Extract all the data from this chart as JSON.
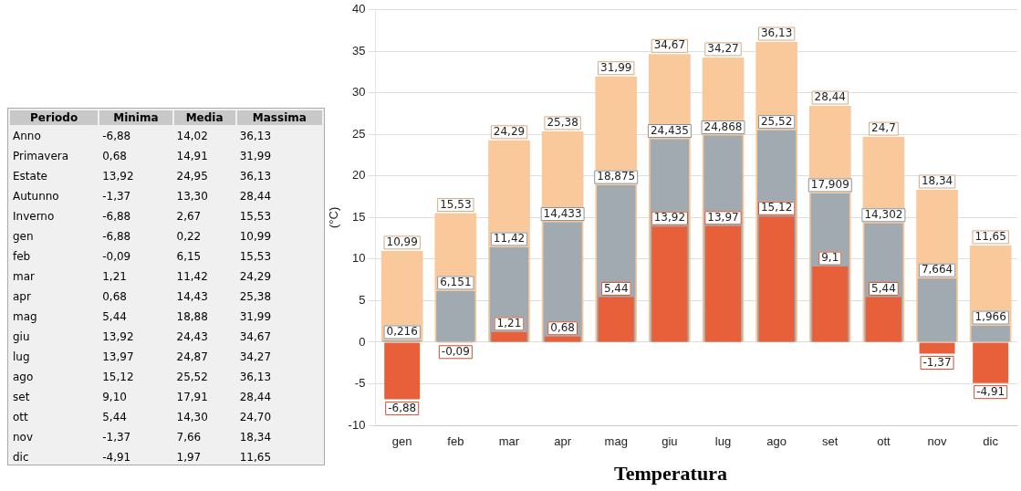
{
  "chart_data": [
    {
      "type": "other",
      "xlabel": "Periodo",
      "categories": [
        "Anno",
        "Primavera",
        "Estate",
        "Autunno",
        "Inverno",
        "gen",
        "feb",
        "mar",
        "apr",
        "mag",
        "giu",
        "lug",
        "ago",
        "set",
        "ott",
        "nov",
        "dic"
      ],
      "series": [
        {
          "name": "Minima",
          "values": [
            -6.88,
            0.68,
            13.92,
            -1.37,
            -6.88,
            -6.88,
            -0.09,
            1.21,
            0.68,
            5.44,
            13.92,
            13.97,
            15.12,
            9.1,
            5.44,
            -1.37,
            -4.91
          ],
          "value_labels": [
            "-6,88",
            "0,68",
            "13,92",
            "-1,37",
            "-6,88",
            "-6,88",
            "-0,09",
            "1,21",
            "0,68",
            "5,44",
            "13,92",
            "13,97",
            "15,12",
            "9,10",
            "5,44",
            "-1,37",
            "-4,91"
          ]
        },
        {
          "name": "Media",
          "values": [
            14.02,
            14.91,
            24.95,
            13.3,
            2.67,
            0.22,
            6.15,
            11.42,
            14.43,
            18.88,
            24.43,
            24.87,
            25.52,
            17.91,
            14.3,
            7.66,
            1.97
          ],
          "value_labels": [
            "14,02",
            "14,91",
            "24,95",
            "13,30",
            "2,67",
            "0,22",
            "6,15",
            "11,42",
            "14,43",
            "18,88",
            "24,43",
            "24,87",
            "25,52",
            "17,91",
            "14,30",
            "7,66",
            "1,97"
          ]
        },
        {
          "name": "Massima",
          "values": [
            36.13,
            31.99,
            36.13,
            28.44,
            15.53,
            10.99,
            15.53,
            24.29,
            25.38,
            31.99,
            34.67,
            34.27,
            36.13,
            28.44,
            24.7,
            18.34,
            11.65
          ],
          "value_labels": [
            "36,13",
            "31,99",
            "36,13",
            "28,44",
            "15,53",
            "10,99",
            "15,53",
            "24,29",
            "25,38",
            "31,99",
            "34,67",
            "34,27",
            "36,13",
            "28,44",
            "24,70",
            "18,34",
            "11,65"
          ]
        }
      ]
    },
    {
      "type": "bar",
      "title": "Temperatura",
      "ylabel": "(°C)",
      "categories": [
        "gen",
        "feb",
        "mar",
        "apr",
        "mag",
        "giu",
        "lug",
        "ago",
        "set",
        "ott",
        "nov",
        "dic"
      ],
      "ylim": [
        -10,
        40
      ],
      "yticks": [
        -10,
        -5,
        0,
        5,
        10,
        15,
        20,
        25,
        30,
        35,
        40
      ],
      "grid": "y",
      "legend": false,
      "data_labels": true,
      "series": [
        {
          "color": "#f9c89b",
          "values": [
            10.99,
            15.53,
            24.29,
            25.38,
            31.99,
            34.67,
            34.27,
            36.13,
            28.44,
            24.7,
            18.34,
            11.65
          ],
          "value_labels": [
            "10,99",
            "15,53",
            "24,29",
            "25,38",
            "31,99",
            "34,67",
            "34,27",
            "36,13",
            "28,44",
            "24,7",
            "18,34",
            "11,65"
          ]
        },
        {
          "color": "#a2aab1",
          "values": [
            0.216,
            6.151,
            11.42,
            14.433,
            18.875,
            24.435,
            24.868,
            25.52,
            17.909,
            14.302,
            7.664,
            1.966
          ],
          "value_labels": [
            "0,216",
            "6,151",
            "11,42",
            "14,433",
            "18,875",
            "24,435",
            "24,868",
            "25,52",
            "17,909",
            "14,302",
            "7,664",
            "1,966"
          ]
        },
        {
          "color": "#e8603a",
          "values": [
            -6.88,
            -0.09,
            1.21,
            0.68,
            5.44,
            13.92,
            13.97,
            15.12,
            9.1,
            5.44,
            -1.37,
            -4.91
          ],
          "value_labels": [
            "-6,88",
            "-0,09",
            "1,21",
            "0,68",
            "5,44",
            "13,92",
            "13,97",
            "15,12",
            "9,1",
            "5,44",
            "-1,37",
            "-4,91"
          ]
        }
      ]
    }
  ]
}
